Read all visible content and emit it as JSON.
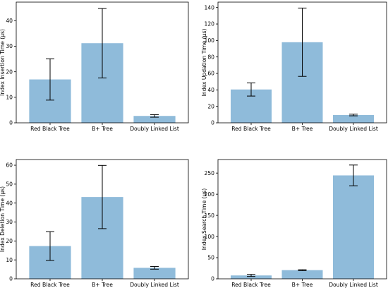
{
  "bar_color": "#8fbbda",
  "error_color": "#000000",
  "chart_data": [
    {
      "type": "bar",
      "title": "",
      "xlabel": "",
      "ylabel": "Index Insertion Time (μs)",
      "categories": [
        "Red Black Tree",
        "B+ Tree",
        "Doubly Linked List"
      ],
      "values": [
        17,
        31.2,
        2.7
      ],
      "error": [
        8.1,
        13.6,
        0.5
      ],
      "ylim": [
        0,
        47.3
      ],
      "yticks": [
        0,
        10,
        20,
        30,
        40
      ],
      "grid": false
    },
    {
      "type": "bar",
      "title": "",
      "xlabel": "",
      "ylabel": "Index Updation Time (μs)",
      "categories": [
        "Red Black Tree",
        "B+ Tree",
        "Doubly Linked List"
      ],
      "values": [
        40.5,
        97.9,
        9.5
      ],
      "error": [
        8,
        41.5,
        1
      ],
      "ylim": [
        0,
        146.6
      ],
      "yticks": [
        0,
        20,
        40,
        60,
        80,
        100,
        120,
        140
      ],
      "grid": false
    },
    {
      "type": "bar",
      "title": "",
      "xlabel": "",
      "ylabel": "Index Deletion Time (μs)",
      "categories": [
        "Red Black Tree",
        "B+ Tree",
        "Doubly Linked List"
      ],
      "values": [
        17.3,
        43.2,
        5.8
      ],
      "error": [
        7.6,
        16.7,
        0.7
      ],
      "ylim": [
        0,
        63
      ],
      "yticks": [
        0,
        10,
        20,
        30,
        40,
        50,
        60
      ],
      "grid": false
    },
    {
      "type": "bar",
      "title": "",
      "xlabel": "",
      "ylabel": "Index Search Time (μs)",
      "categories": [
        "Red Black Tree",
        "B+ Tree",
        "Doubly Linked List"
      ],
      "values": [
        8,
        20.5,
        244.5
      ],
      "error": [
        2.5,
        1,
        24.5
      ],
      "ylim": [
        0,
        282
      ],
      "yticks": [
        0,
        50,
        100,
        150,
        200,
        250
      ],
      "grid": false
    }
  ]
}
